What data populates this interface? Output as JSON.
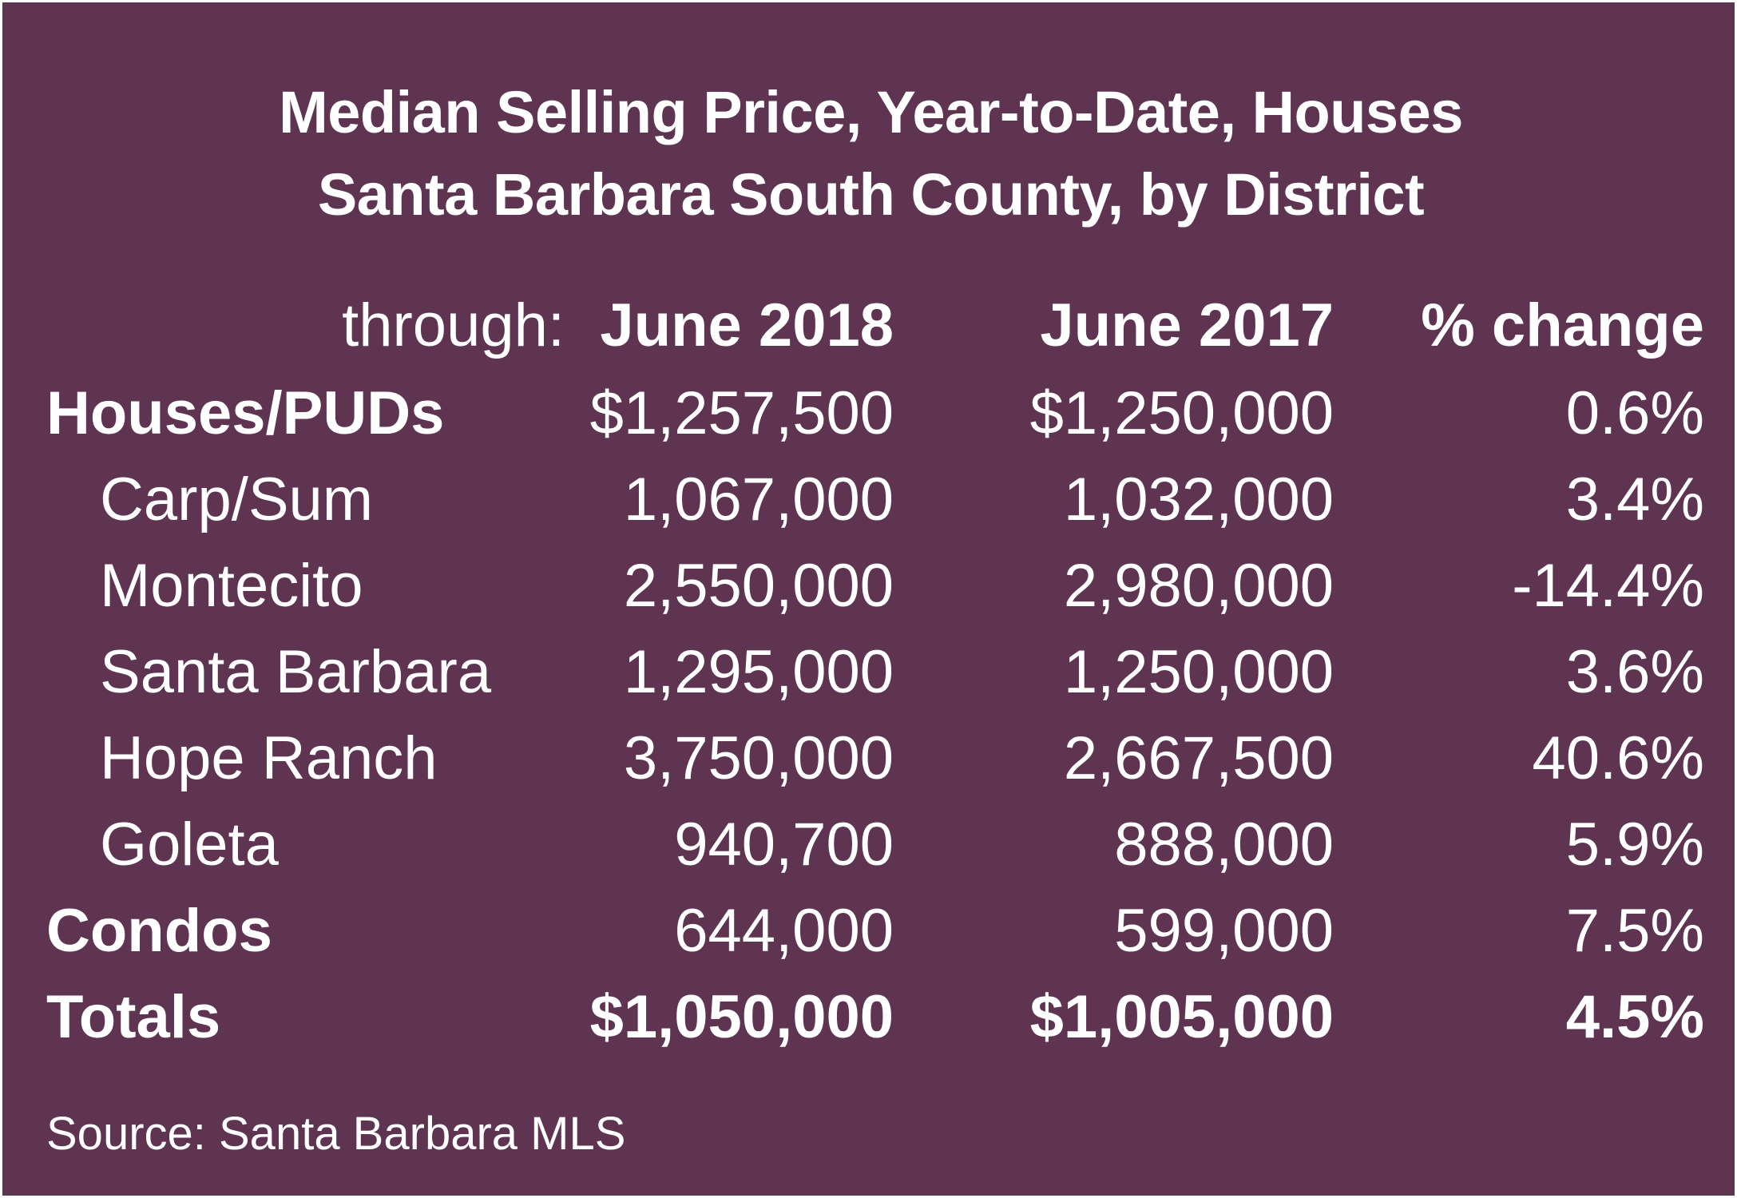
{
  "chart_data": {
    "type": "table",
    "title_line1": "Median Selling Price, Year-to-Date, Houses",
    "title_line2": "Santa Barbara South County, by District",
    "header": {
      "through": "through:",
      "col1": "June 2018",
      "col2": "June 2017",
      "col3": "% change"
    },
    "rows": [
      {
        "label": "Houses/PUDs",
        "v2018": "$1,257,500",
        "v2017": "$1,250,000",
        "change": "0.6%"
      },
      {
        "label": "Carp/Sum",
        "v2018": "1,067,000",
        "v2017": "1,032,000",
        "change": "3.4%"
      },
      {
        "label": "Montecito",
        "v2018": "2,550,000",
        "v2017": "2,980,000",
        "change": "-14.4%"
      },
      {
        "label": "Santa Barbara",
        "v2018": "1,295,000",
        "v2017": "1,250,000",
        "change": "3.6%"
      },
      {
        "label": "Hope Ranch",
        "v2018": "3,750,000",
        "v2017": "2,667,500",
        "change": "40.6%"
      },
      {
        "label": "Goleta",
        "v2018": "940,700",
        "v2017": "888,000",
        "change": "5.9%"
      },
      {
        "label": "Condos",
        "v2018": "644,000",
        "v2017": "599,000",
        "change": "7.5%"
      },
      {
        "label": "Totals",
        "v2018": "$1,050,000",
        "v2017": "$1,005,000",
        "change": "4.5%"
      }
    ],
    "source": "Source: Santa Barbara MLS"
  },
  "colors": {
    "background": "#5e3451",
    "text": "#ffffff"
  }
}
